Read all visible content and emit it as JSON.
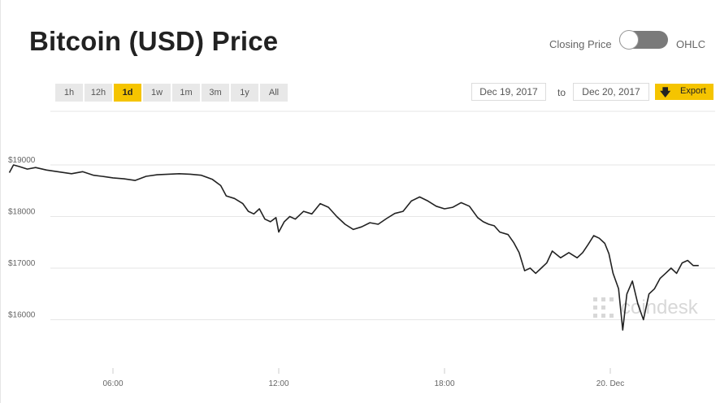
{
  "header": {
    "title": "Bitcoin (USD) Price",
    "toggle_left_label": "Closing Price",
    "toggle_right_label": "OHLC"
  },
  "range_buttons": [
    {
      "label": "1h",
      "active": false
    },
    {
      "label": "12h",
      "active": false
    },
    {
      "label": "1d",
      "active": true
    },
    {
      "label": "1w",
      "active": false
    },
    {
      "label": "1m",
      "active": false
    },
    {
      "label": "3m",
      "active": false
    },
    {
      "label": "1y",
      "active": false
    },
    {
      "label": "All",
      "active": false
    }
  ],
  "date_range": {
    "from": "Dec 19, 2017",
    "to_label": "to",
    "to": "Dec 20, 2017"
  },
  "export": {
    "label": "Export",
    "icon": "download-arrow-icon"
  },
  "watermark": {
    "text": "coindesk",
    "icon": "coindesk-logo-icon"
  },
  "colors": {
    "accent": "#f5c400",
    "line": "#222222",
    "grid": "#e6e6e6"
  },
  "chart_data": {
    "type": "line",
    "title": "",
    "xlabel": "",
    "ylabel": "",
    "y_ticks": [
      {
        "value": 19000,
        "label": "$19000"
      },
      {
        "value": 18000,
        "label": "$18000"
      },
      {
        "value": 17000,
        "label": "$17000"
      },
      {
        "value": 16000,
        "label": "$16000"
      }
    ],
    "x_ticks": [
      {
        "hour": 6,
        "label": "06:00"
      },
      {
        "hour": 12,
        "label": "12:00"
      },
      {
        "hour": 18,
        "label": "18:00"
      },
      {
        "hour": 24,
        "label": "20. Dec"
      }
    ],
    "xlim": [
      2.25,
      27.3
    ],
    "ylim": [
      15000,
      19900
    ],
    "grid": true,
    "series": [
      {
        "x": [
          2.25,
          2.4,
          2.6,
          2.9,
          3.2,
          3.6,
          4.0,
          4.5,
          4.9,
          5.3,
          5.6,
          6.0,
          6.4,
          6.8,
          7.2,
          7.6,
          8.0,
          8.4,
          8.8,
          9.2,
          9.6,
          9.9,
          10.1,
          10.4,
          10.7,
          10.9,
          11.1,
          11.3,
          11.5,
          11.7,
          11.9,
          12.0,
          12.2,
          12.4,
          12.6,
          12.9,
          13.2,
          13.5,
          13.8,
          14.1,
          14.4,
          14.7,
          15.0,
          15.3,
          15.6,
          15.9,
          16.2,
          16.5,
          16.8,
          17.1,
          17.4,
          17.7,
          18.0,
          18.3,
          18.6,
          18.9,
          19.2,
          19.4,
          19.6,
          19.8,
          20.0,
          20.3,
          20.5,
          20.7,
          20.9,
          21.1,
          21.3,
          21.5,
          21.7,
          21.9,
          22.2,
          22.5,
          22.8,
          23.0,
          23.2,
          23.4,
          23.6,
          23.8,
          23.95,
          24.1,
          24.3,
          24.45,
          24.6,
          24.8,
          25.0,
          25.2,
          25.4,
          25.6,
          25.8,
          26.0,
          26.2,
          26.4,
          26.6,
          26.8,
          27.0,
          27.2
        ],
        "y": [
          18850,
          19000,
          18970,
          18920,
          18950,
          18900,
          18870,
          18830,
          18870,
          18800,
          18780,
          18750,
          18730,
          18700,
          18780,
          18810,
          18820,
          18830,
          18820,
          18800,
          18720,
          18600,
          18400,
          18350,
          18250,
          18100,
          18050,
          18150,
          17950,
          17900,
          17980,
          17700,
          17900,
          18000,
          17950,
          18100,
          18050,
          18250,
          18180,
          18000,
          17850,
          17750,
          17800,
          17880,
          17850,
          17960,
          18060,
          18100,
          18300,
          18380,
          18300,
          18200,
          18150,
          18180,
          18270,
          18200,
          17980,
          17900,
          17850,
          17820,
          17700,
          17650,
          17500,
          17300,
          16950,
          17000,
          16900,
          17000,
          17100,
          17330,
          17200,
          17300,
          17200,
          17300,
          17460,
          17630,
          17580,
          17480,
          17280,
          16900,
          16600,
          15800,
          16500,
          16750,
          16300,
          16000,
          16500,
          16600,
          16800,
          16900,
          17000,
          16900,
          17100,
          17150,
          17050,
          17050
        ]
      }
    ]
  }
}
